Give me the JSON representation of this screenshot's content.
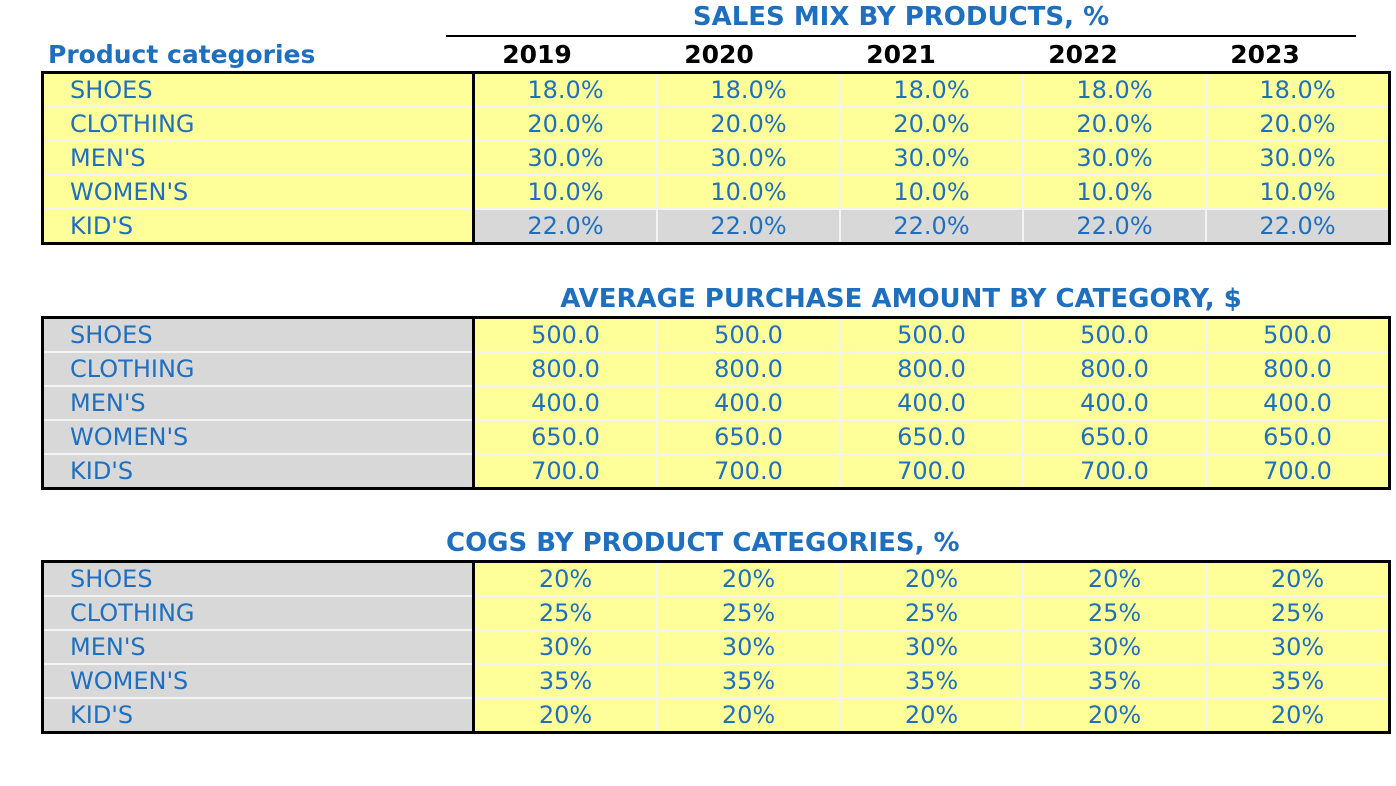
{
  "years": [
    "2019",
    "2020",
    "2021",
    "2022",
    "2023"
  ],
  "category_header": "Product categories",
  "colors": {
    "title_blue": "#1f6fbf",
    "input_yellow": "#ffff99",
    "label_gray": "#d8d8d8"
  },
  "tables": [
    {
      "title": "SALES MIX BY PRODUCTS, %",
      "rows": [
        {
          "label": "SHOES",
          "values": [
            "18.0%",
            "18.0%",
            "18.0%",
            "18.0%",
            "18.0%"
          ]
        },
        {
          "label": "CLOTHING",
          "values": [
            "20.0%",
            "20.0%",
            "20.0%",
            "20.0%",
            "20.0%"
          ]
        },
        {
          "label": "MEN'S",
          "values": [
            "30.0%",
            "30.0%",
            "30.0%",
            "30.0%",
            "30.0%"
          ]
        },
        {
          "label": "WOMEN'S",
          "values": [
            "10.0%",
            "10.0%",
            "10.0%",
            "10.0%",
            "10.0%"
          ]
        },
        {
          "label": "KID'S",
          "values": [
            "22.0%",
            "22.0%",
            "22.0%",
            "22.0%",
            "22.0%"
          ]
        }
      ]
    },
    {
      "title": "AVERAGE PURCHASE AMOUNT BY CATEGORY, $",
      "rows": [
        {
          "label": "SHOES",
          "values": [
            "500.0",
            "500.0",
            "500.0",
            "500.0",
            "500.0"
          ]
        },
        {
          "label": "CLOTHING",
          "values": [
            "800.0",
            "800.0",
            "800.0",
            "800.0",
            "800.0"
          ]
        },
        {
          "label": "MEN'S",
          "values": [
            "400.0",
            "400.0",
            "400.0",
            "400.0",
            "400.0"
          ]
        },
        {
          "label": "WOMEN'S",
          "values": [
            "650.0",
            "650.0",
            "650.0",
            "650.0",
            "650.0"
          ]
        },
        {
          "label": "KID'S",
          "values": [
            "700.0",
            "700.0",
            "700.0",
            "700.0",
            "700.0"
          ]
        }
      ]
    },
    {
      "title": "COGS BY PRODUCT CATEGORIES, %",
      "rows": [
        {
          "label": "SHOES",
          "values": [
            "20%",
            "20%",
            "20%",
            "20%",
            "20%"
          ]
        },
        {
          "label": "CLOTHING",
          "values": [
            "25%",
            "25%",
            "25%",
            "25%",
            "25%"
          ]
        },
        {
          "label": "MEN'S",
          "values": [
            "30%",
            "30%",
            "30%",
            "30%",
            "30%"
          ]
        },
        {
          "label": "WOMEN'S",
          "values": [
            "35%",
            "35%",
            "35%",
            "35%",
            "35%"
          ]
        },
        {
          "label": "KID'S",
          "values": [
            "20%",
            "20%",
            "20%",
            "20%",
            "20%"
          ]
        }
      ]
    }
  ]
}
